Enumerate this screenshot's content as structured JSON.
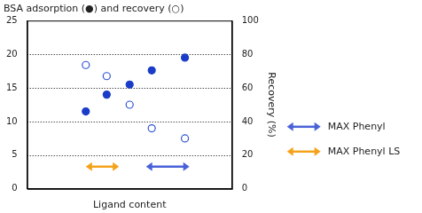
{
  "chart_data": {
    "type": "scatter",
    "title": "BSA adsorption (●) and recovery (○)",
    "x_label": "Ligand content",
    "y2_label": "Recovery (%)",
    "x": [
      1.43,
      1.94,
      2.5,
      3.04,
      3.85
    ],
    "xlim": [
      0,
      5
    ],
    "ylim": [
      0,
      25
    ],
    "yticks": [
      0,
      5,
      10,
      15,
      20,
      25
    ],
    "y2lim": [
      0,
      100
    ],
    "y2ticks": [
      0,
      20,
      40,
      60,
      80,
      100
    ],
    "grid": true,
    "tick_labels": "y",
    "legend": "right",
    "series": [
      {
        "color": "#1a3cc8",
        "marker": "filled",
        "values": [
          11.5,
          14,
          15.5,
          17.6,
          19.5
        ]
      },
      {
        "color": "#2f52d4",
        "marker": "open",
        "axis": "y2",
        "values": [
          73.6,
          67,
          50,
          36,
          30
        ]
      }
    ],
    "annotations": [
      {
        "text": "MAX Phenyl",
        "color": "#4a62d8",
        "x": [
          2.9,
          3.96
        ],
        "y": 3.3
      },
      {
        "text": "MAX Phenyl LS",
        "color": "#f5a21b",
        "x": [
          1.43,
          2.24
        ],
        "y": 3.3
      }
    ]
  }
}
